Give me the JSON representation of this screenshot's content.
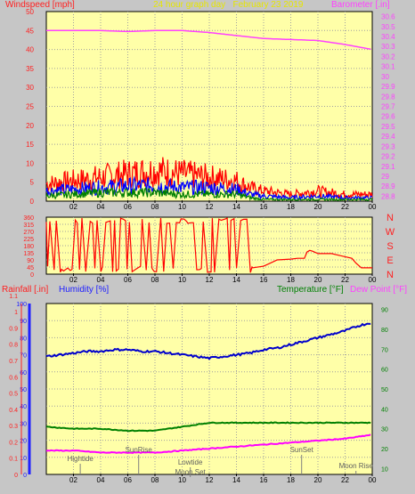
{
  "header": {
    "left_label": "Windspeed [mph]",
    "center_label": "24 hour graph day   February 23 2019",
    "right_label": "Barometer [.in]"
  },
  "colors": {
    "background": "#c6c6c6",
    "plot_bg": "#ffffa8",
    "wind_gust": "#ff0000",
    "wind_avg": "#0000ff",
    "wind_low": "#008000",
    "barometer": "#ff40ff",
    "direction": "#ff0000",
    "humidity": "#0000cc",
    "temperature": "#008000",
    "dewpoint": "#ff00ff",
    "rainfall": "#ff0000"
  },
  "chart_data": [
    {
      "type": "line",
      "title": "24 hour graph day   February 23 2019",
      "ylabel": "Windspeed [mph]",
      "y2label": "Barometer [.in]",
      "x_ticks": [
        "02",
        "04",
        "06",
        "08",
        "10",
        "12",
        "14",
        "16",
        "18",
        "20",
        "22",
        "00"
      ],
      "ylim": [
        0,
        50
      ],
      "yticks": [
        0,
        5,
        10,
        15,
        20,
        25,
        30,
        35,
        40,
        45,
        50
      ],
      "y2lim": [
        28.75,
        30.65
      ],
      "y2ticks": [
        "28.8",
        "28.9",
        "29",
        "29.1",
        "29.2",
        "29.3",
        "29.4",
        "29.5",
        "29.6",
        "29.7",
        "29.8",
        "29.9",
        "30",
        "30.1",
        "30.2",
        "30.3",
        "30.4",
        "30.5",
        "30.6"
      ],
      "grid": true,
      "series": [
        {
          "name": "Barometer",
          "axis": "right",
          "x": [
            0,
            2,
            4,
            6,
            8,
            10,
            12,
            14,
            16,
            18,
            20,
            22,
            24
          ],
          "values": [
            30.46,
            30.46,
            30.46,
            30.45,
            30.46,
            30.46,
            30.44,
            30.41,
            30.38,
            30.37,
            30.36,
            30.32,
            30.27
          ]
        },
        {
          "name": "Windspeed gust",
          "axis": "left",
          "x": [
            0,
            2,
            4,
            6,
            8,
            10,
            12,
            14,
            15,
            16,
            18,
            20,
            22,
            24
          ],
          "values": [
            5,
            6,
            7,
            8,
            9,
            8,
            7,
            6,
            4,
            3,
            2,
            3,
            2,
            2
          ]
        },
        {
          "name": "Windspeed avg",
          "axis": "left",
          "x": [
            0,
            2,
            4,
            6,
            8,
            10,
            12,
            14,
            15,
            16,
            18,
            20,
            22,
            24
          ],
          "values": [
            3,
            3.5,
            4,
            4.5,
            4.5,
            4,
            4,
            3.5,
            2,
            1.5,
            1,
            1.5,
            1,
            1
          ]
        },
        {
          "name": "Windspeed low",
          "axis": "left",
          "x": [
            0,
            2,
            4,
            6,
            8,
            10,
            12,
            14,
            15,
            16,
            18,
            20,
            22,
            24
          ],
          "values": [
            1.5,
            2,
            2.5,
            2.5,
            2.5,
            2,
            2,
            2,
            1,
            0.5,
            0.5,
            0.5,
            0.5,
            0.5
          ]
        }
      ]
    },
    {
      "type": "line",
      "ylabel_right": [
        "N",
        "W",
        "S",
        "E",
        "N"
      ],
      "ylim": [
        0,
        360
      ],
      "yticks": [
        0,
        45,
        90,
        135,
        180,
        225,
        270,
        315,
        360
      ],
      "x_ticks": [
        "02",
        "04",
        "06",
        "08",
        "10",
        "12",
        "14",
        "16",
        "18",
        "20",
        "22",
        "00"
      ],
      "series": [
        {
          "name": "Wind direction",
          "x": [
            15.2,
            16,
            16.5,
            17,
            18,
            18.5,
            19,
            19.2,
            19.4,
            19.6,
            20,
            21,
            21.5,
            22,
            22.5,
            22.8,
            23.2,
            23.5,
            24
          ],
          "values": [
            40,
            50,
            70,
            90,
            95,
            100,
            100,
            140,
            150,
            145,
            130,
            130,
            120,
            110,
            100,
            70,
            40,
            40,
            40
          ]
        }
      ]
    },
    {
      "type": "line",
      "ylabel_left_outer": "Rainfall [.in]",
      "ylabel_left_inner": "Humidity [%]",
      "ylabel_right_inner": "Temperature [°F]",
      "ylabel_right_outer": "Dew Point [°F]",
      "rain_ticks": [
        "0",
        "0.1",
        "0.2",
        "0.3",
        "0.4",
        "0.5",
        "0.6",
        "0.7",
        "0.8",
        "0.9",
        "1",
        "1.1"
      ],
      "humidity_ticks": [
        "0",
        "10",
        "20",
        "30",
        "40",
        "50",
        "60",
        "70",
        "80",
        "90",
        "100"
      ],
      "temp_ticks": [
        "10",
        "20",
        "30",
        "40",
        "50",
        "60",
        "70",
        "80",
        "90"
      ],
      "x_ticks": [
        "02",
        "04",
        "06",
        "08",
        "10",
        "12",
        "14",
        "16",
        "18",
        "20",
        "22",
        "00"
      ],
      "annotations": [
        "Hightide",
        "SunRise",
        "Lowtide",
        "Moon Set",
        "SunSet",
        "Moon Rise"
      ],
      "series": [
        {
          "name": "Humidity",
          "axis": "humidity",
          "x": [
            0,
            1,
            2,
            3,
            4,
            5,
            6,
            7,
            8,
            9,
            10,
            11,
            12,
            13,
            14,
            15,
            16,
            17,
            18,
            19,
            20,
            21,
            22,
            23,
            24
          ],
          "values": [
            69,
            70,
            71,
            72,
            72,
            73,
            73,
            72,
            72,
            71,
            70,
            69,
            68,
            69,
            70,
            71,
            73,
            74,
            76,
            78,
            80,
            82,
            84,
            87,
            89
          ]
        },
        {
          "name": "Temperature",
          "axis": "temp",
          "x": [
            0,
            2,
            4,
            6,
            8,
            10,
            12,
            14,
            16,
            18,
            20,
            22,
            24
          ],
          "values": [
            31,
            30,
            30,
            29,
            29,
            31,
            33,
            33,
            33,
            33,
            33,
            33,
            33
          ]
        },
        {
          "name": "Dew Point",
          "axis": "temp",
          "x": [
            0,
            2,
            4,
            6,
            8,
            10,
            12,
            14,
            16,
            18,
            20,
            22,
            24
          ],
          "values": [
            19,
            19,
            18,
            18,
            18,
            19,
            20,
            21,
            22,
            23,
            24,
            25,
            27
          ]
        },
        {
          "name": "Rainfall",
          "axis": "rain",
          "x": [
            0,
            24
          ],
          "values": [
            0,
            0
          ]
        }
      ]
    }
  ],
  "panel3": {
    "left_label_outer": "Rainfall [.in]",
    "left_label_inner": "Humidity [%]",
    "right_label_inner": "Temperature [°F]",
    "right_label_outer": "Dew Point [°F]"
  }
}
